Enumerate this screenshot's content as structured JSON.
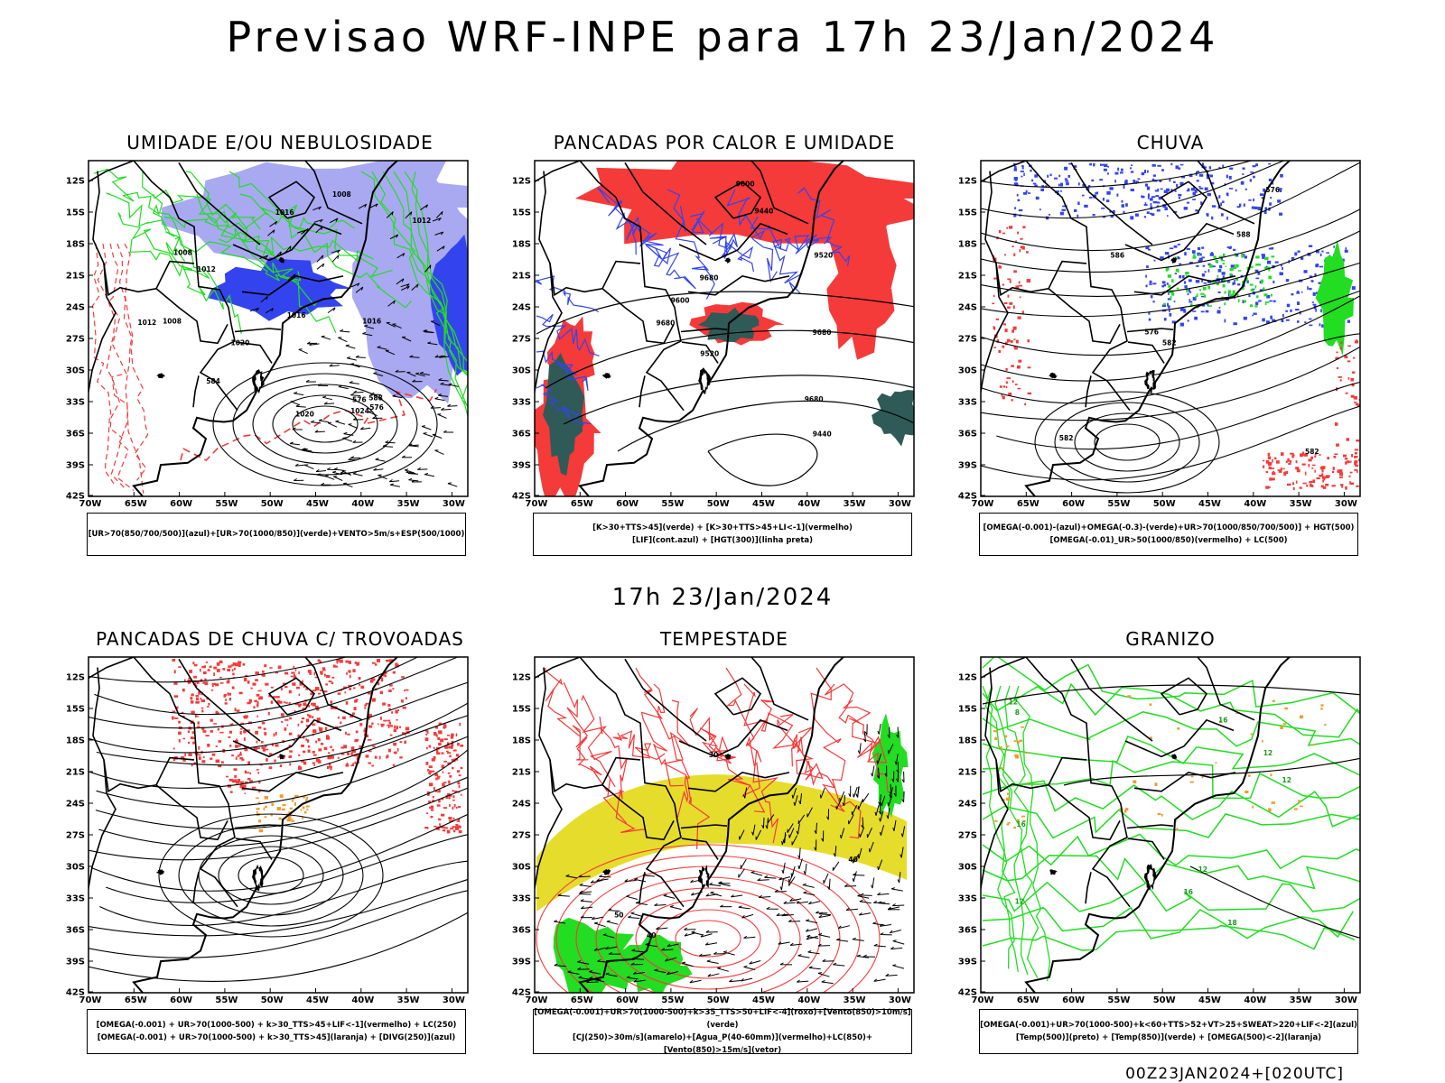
{
  "title": "Previsao WRF-INPE  para 17h 23/Jan/2024",
  "middle_date": "17h 23/Jan/2024",
  "footer": "00Z23JAN2024+[020UTC]",
  "axes": {
    "lat": [
      "12S",
      "15S",
      "18S",
      "21S",
      "24S",
      "27S",
      "30S",
      "33S",
      "36S",
      "39S",
      "42S"
    ],
    "lon": [
      "70W",
      "65W",
      "60W",
      "55W",
      "50W",
      "45W",
      "40W",
      "35W",
      "30W"
    ]
  },
  "colors": {
    "blue": "#3344ee",
    "lilac": "#a9a9f2",
    "green": "#22dd22",
    "red": "#f53a3a",
    "dark_teal": "#2f5a58",
    "yellow": "#e6dc2c",
    "orange": "#f39a2e"
  },
  "panels": [
    {
      "title": "UMIDADE E/OU NEBULOSIDADE",
      "legend": [
        "[UR>70(850/700/500)](azul)+[UR>70(1000/850)](verde)+VENTO>5m/s+ESP(500/1000)"
      ],
      "labels": [
        "1008",
        "1008",
        "1008",
        "1012",
        "1012",
        "1012",
        "1016",
        "1016",
        "1016",
        "1020",
        "1020",
        "1024",
        "576",
        "576",
        "584",
        "588"
      ]
    },
    {
      "title": "PANCADAS POR CALOR E UMIDADE",
      "legend": [
        "[K>30+TTS>45](verde) + [K>30+TTS>45+LI<-1](vermelho)",
        "[LIF](cont.azul) + [HGT(300)](linha preta)"
      ],
      "labels": [
        "9680",
        "9680",
        "9680",
        "9680",
        "9600",
        "9600",
        "9520",
        "9520",
        "9440",
        "9440"
      ]
    },
    {
      "title": "CHUVA",
      "legend": [
        "[OMEGA(-0.001)-(azul)+OMEGA(-0.3)-(verde)+UR>70(1000/850/700/500)] + HGT(500)",
        "[OMEGA(-0.01)_UR>50(1000/850)(vermelho) + LC(500)"
      ],
      "labels": [
        "588",
        "586",
        "582",
        "582",
        "582",
        "576",
        "576"
      ]
    },
    {
      "title": "PANCADAS DE CHUVA C/ TROVOADAS",
      "legend": [
        "[OMEGA(-0.001) + UR>70(1000-500) + k>30_TTS>45+LIF<-1](vermelho) + LC(250)",
        "[OMEGA(-0.001) + UR>70(1000-500) + k>30_TTS>45](laranja) + [DIVG(250)](azul)"
      ],
      "labels": []
    },
    {
      "title": "TEMPESTADE",
      "legend": [
        "[OMEGA(-0.001)+UR>70(1000-500)+k>35_TTS>50+LIF<-4](roxo)+[Vento(850)>10m/s](verde)",
        "[CJ(250)>30m/s](amarelo)+[Agua_P(40-60mm)](vermelho)+LC(850)+[Vento(850)>15m/s](vetor)"
      ],
      "labels": [
        "40",
        "30",
        "50",
        "40"
      ]
    },
    {
      "title": "GRANIZO",
      "legend": [
        "[OMEGA(-0.001)+UR>70(1000-500)+k<60+TTS>52+VT>25+SWEAT>220+LIF<-2](azul)",
        "[Temp(500)](preto) + [Temp(850)](verde) + [OMEGA(500)<-2](laranja)"
      ],
      "labels": [
        "16",
        "12",
        "12",
        "12",
        "16",
        "18",
        "12",
        "8",
        "12",
        "16"
      ]
    }
  ]
}
